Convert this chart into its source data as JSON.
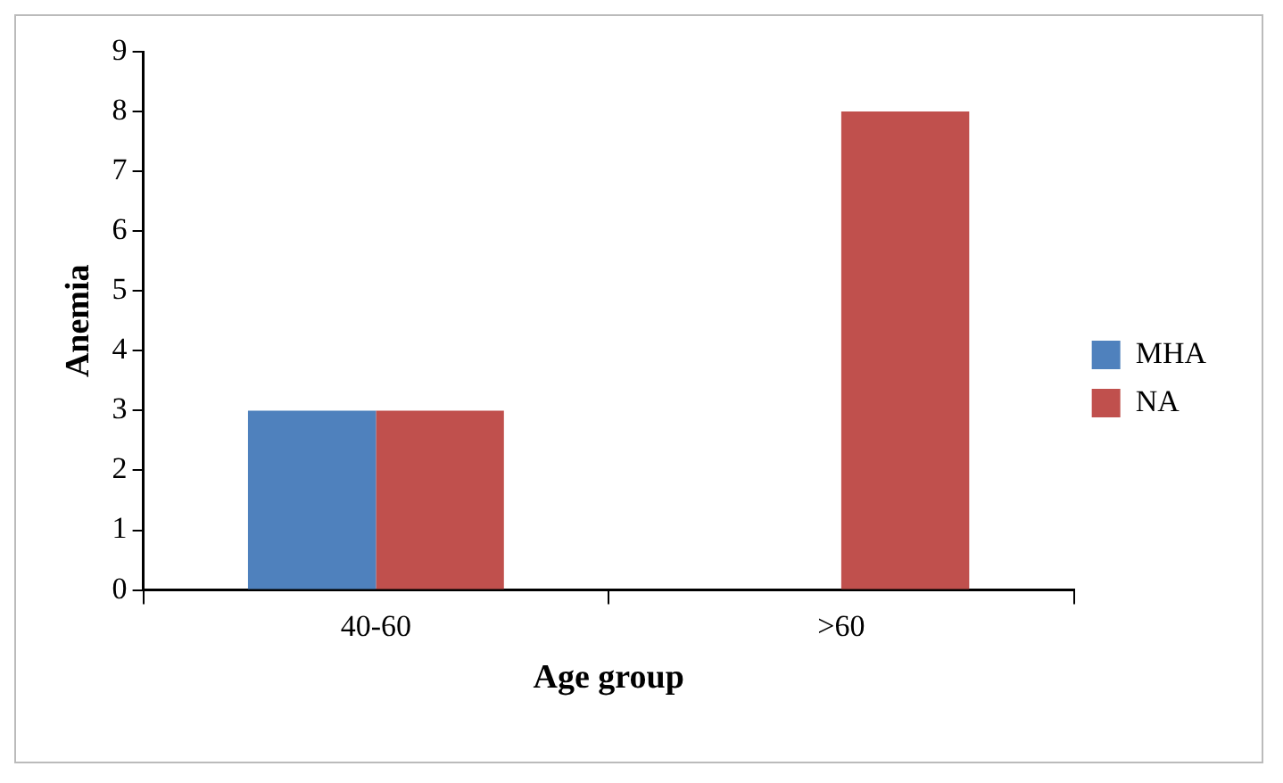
{
  "chart_data": {
    "type": "bar",
    "xlabel": "Age group",
    "ylabel": "Anemia",
    "categories": [
      "40-60",
      ">60"
    ],
    "series": [
      {
        "name": "MHA",
        "color": "#4f81bd",
        "values": [
          3,
          0
        ]
      },
      {
        "name": "NA",
        "color": "#c0504d",
        "values": [
          3,
          8
        ]
      }
    ],
    "ylim": [
      0,
      9
    ],
    "yticks": [
      0,
      1,
      2,
      3,
      4,
      5,
      6,
      7,
      8,
      9
    ],
    "grid": false,
    "legend": "right"
  }
}
